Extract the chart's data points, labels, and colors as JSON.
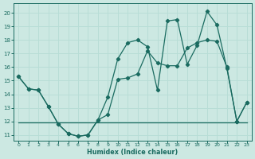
{
  "xlabel": "Humidex (Indice chaleur)",
  "background_color": "#cce8e2",
  "line_color": "#1a6b60",
  "grid_color": "#b8ddd6",
  "xlim": [
    -0.5,
    23.5
  ],
  "ylim": [
    10.6,
    20.7
  ],
  "yticks": [
    11,
    12,
    13,
    14,
    15,
    16,
    17,
    18,
    19,
    20
  ],
  "xticks": [
    0,
    1,
    2,
    3,
    4,
    5,
    6,
    7,
    8,
    9,
    10,
    11,
    12,
    13,
    14,
    15,
    16,
    17,
    18,
    19,
    20,
    21,
    22,
    23
  ],
  "line1_x": [
    0,
    1,
    2,
    3,
    4,
    5,
    6,
    7,
    8,
    9,
    10,
    11,
    12,
    13,
    14,
    15,
    16,
    17,
    18,
    19,
    20,
    21,
    22,
    23
  ],
  "line1_y": [
    15.3,
    14.4,
    14.3,
    13.1,
    11.8,
    11.1,
    10.9,
    11.0,
    12.1,
    13.8,
    16.6,
    17.8,
    18.0,
    17.5,
    14.3,
    19.4,
    19.5,
    16.2,
    17.6,
    20.1,
    19.1,
    15.9,
    12.0,
    13.4
  ],
  "line2_x": [
    0,
    1,
    2,
    3,
    4,
    5,
    6,
    7,
    8,
    9,
    10,
    11,
    12,
    13,
    14,
    15,
    16,
    17,
    18,
    19,
    20,
    21,
    22,
    23
  ],
  "line2_y": [
    15.3,
    14.4,
    14.3,
    13.1,
    11.8,
    11.1,
    10.9,
    11.0,
    12.1,
    12.5,
    15.1,
    15.2,
    15.5,
    17.2,
    16.3,
    16.1,
    16.1,
    17.4,
    17.8,
    18.0,
    17.9,
    16.0,
    12.0,
    13.4
  ],
  "line3_x": [
    0,
    1,
    2,
    3,
    4,
    5,
    6,
    7,
    8,
    9,
    10,
    17,
    18,
    19,
    20,
    21,
    22,
    23
  ],
  "line3_y": [
    11.9,
    11.9,
    11.9,
    11.9,
    11.9,
    11.9,
    11.9,
    11.9,
    11.9,
    11.9,
    11.9,
    11.9,
    11.9,
    11.9,
    11.9,
    11.9,
    11.9,
    11.9
  ]
}
